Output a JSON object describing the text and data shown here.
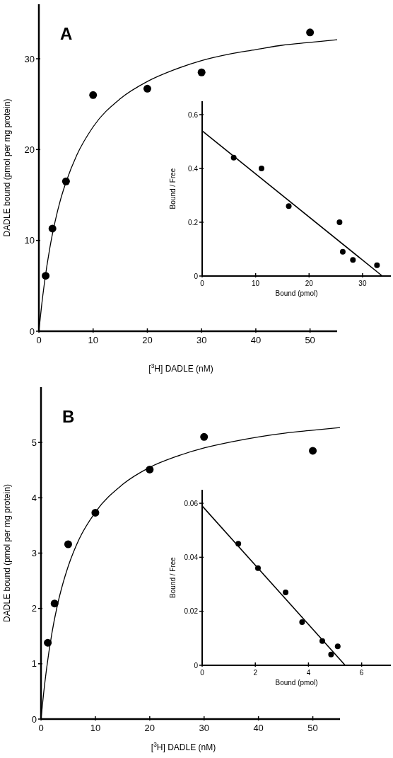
{
  "chart_data": [
    {
      "type": "scatter",
      "title": "A",
      "xlabel": "[$^{3}$H] DADLE  (nM)",
      "ylabel": "DADLE bound (pmol per mg protein)",
      "xlim": [
        0,
        55
      ],
      "xticks": [
        0,
        10,
        20,
        30,
        40,
        50
      ],
      "ylim": [
        0,
        36
      ],
      "yticks": [
        0,
        10,
        20,
        30
      ],
      "grid": false,
      "series": [
        {
          "type": "scatter",
          "marker": "circle",
          "color": "#000000",
          "x": [
            1.25,
            2.5,
            5,
            10,
            20,
            30,
            50
          ],
          "values": [
            6.1,
            11.3,
            16.5,
            26.0,
            26.7,
            28.5,
            32.9
          ]
        },
        {
          "type": "line",
          "marker": "none",
          "line_style": "solid",
          "color": "#000000",
          "x": [
            0,
            0.5,
            1,
            2,
            3,
            4,
            5,
            7,
            10,
            15,
            20,
            25,
            30,
            35,
            40,
            45,
            50,
            55
          ],
          "values": [
            0,
            2.8,
            5.2,
            9.1,
            12.1,
            14.5,
            16.4,
            19.4,
            22.5,
            25.6,
            27.5,
            28.8,
            29.8,
            30.5,
            31.0,
            31.5,
            31.8,
            32.1
          ]
        }
      ]
    },
    {
      "type": "scatter",
      "xlabel": "Bound  (pmol)",
      "ylabel": "Bound / Free",
      "xlim": [
        0,
        35.3
      ],
      "xticks": [
        0,
        10,
        20,
        30
      ],
      "ylim": [
        0,
        0.65
      ],
      "yticks": [
        0,
        0.2,
        0.4,
        0.6
      ],
      "grid": false,
      "series": [
        {
          "type": "scatter",
          "marker": "circle",
          "color": "#000000",
          "x": [
            5.9,
            11.1,
            16.2,
            25.7,
            26.3,
            28.2,
            32.7
          ],
          "values": [
            0.44,
            0.4,
            0.26,
            0.2,
            0.09,
            0.06,
            0.04
          ]
        },
        {
          "type": "line",
          "marker": "none",
          "line_style": "solid",
          "color": "#000000",
          "x": [
            0,
            33.7
          ],
          "values": [
            0.54,
            0
          ]
        }
      ]
    },
    {
      "type": "scatter",
      "title": "B",
      "xlabel": "[$^{3}$H] DADLE  (nM)",
      "ylabel": "DADLE bound (pmol per mg protein)",
      "xlim": [
        0,
        55
      ],
      "xticks": [
        0,
        10,
        20,
        30,
        40,
        50
      ],
      "ylim": [
        0,
        6
      ],
      "yticks": [
        0,
        1,
        2,
        3,
        4,
        5
      ],
      "grid": false,
      "series": [
        {
          "type": "scatter",
          "marker": "circle",
          "color": "#000000",
          "x": [
            1.25,
            2.5,
            5,
            10,
            20,
            30,
            50
          ],
          "values": [
            1.38,
            2.09,
            3.16,
            3.73,
            4.51,
            5.1,
            4.85
          ]
        },
        {
          "type": "line",
          "marker": "none",
          "line_style": "solid",
          "color": "#000000",
          "x": [
            0,
            0.5,
            1,
            2,
            3,
            4,
            5,
            7,
            10,
            15,
            20,
            25,
            30,
            35,
            40,
            45,
            50,
            55
          ],
          "values": [
            0,
            0.48,
            0.89,
            1.55,
            2.05,
            2.44,
            2.76,
            3.25,
            3.74,
            4.24,
            4.55,
            4.75,
            4.9,
            5.01,
            5.1,
            5.17,
            5.22,
            5.27
          ]
        }
      ]
    },
    {
      "type": "scatter",
      "xlabel": "Bound  (pmol)",
      "ylabel": "Bound / Free",
      "xlim": [
        0,
        7.1
      ],
      "xticks": [
        0,
        2,
        4,
        6
      ],
      "ylim": [
        0,
        0.065
      ],
      "yticks": [
        0,
        0.02,
        0.04,
        0.06
      ],
      "grid": false,
      "series": [
        {
          "type": "scatter",
          "marker": "circle",
          "color": "#000000",
          "x": [
            1.36,
            2.1,
            3.14,
            3.76,
            4.52,
            4.85,
            5.1
          ],
          "values": [
            0.045,
            0.036,
            0.027,
            0.016,
            0.009,
            0.004,
            0.007
          ]
        },
        {
          "type": "line",
          "marker": "none",
          "line_style": "solid",
          "color": "#000000",
          "x": [
            0,
            5.38
          ],
          "values": [
            0.059,
            0
          ]
        }
      ]
    }
  ]
}
